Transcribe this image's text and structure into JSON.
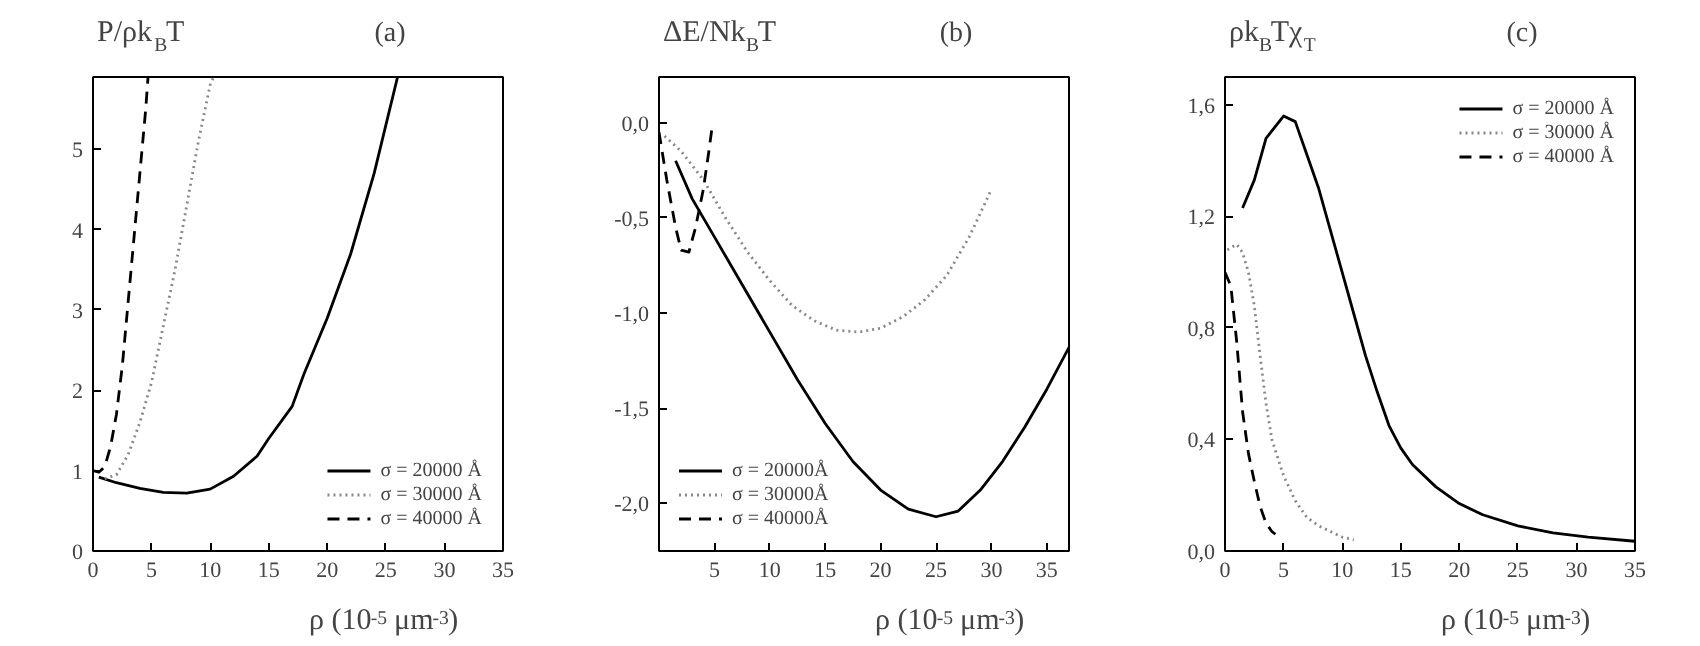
{
  "chart_data": [
    {
      "type": "line",
      "title": "(a)",
      "ylabel": "P/ρk$_{B}$T",
      "xlabel": "ρ (10$^{-5}$ μm$^{-3}$)",
      "xlim": [
        0,
        35
      ],
      "ylim": [
        0,
        5.9
      ],
      "xticks": [
        0,
        5,
        10,
        15,
        20,
        25,
        30,
        35
      ],
      "yticks": [
        0,
        1,
        2,
        3,
        4,
        5
      ],
      "grid": false,
      "legend": "bottom right",
      "series": [
        {
          "name": "σ = 20000 Å",
          "color": "#000000",
          "line_style": "solid",
          "x": [
            0.5,
            2,
            4,
            6,
            8,
            10,
            12,
            14,
            15,
            17,
            18,
            20,
            22,
            24,
            25,
            26
          ],
          "values": [
            0.92,
            0.85,
            0.78,
            0.73,
            0.72,
            0.77,
            0.93,
            1.18,
            1.4,
            1.8,
            2.2,
            2.9,
            3.7,
            4.7,
            5.3,
            5.9
          ]
        },
        {
          "name": "σ = 30000 Å",
          "color": "#888888",
          "line_style": "dotted",
          "x": [
            1,
            2,
            3,
            4,
            5,
            6,
            7,
            8,
            9,
            10,
            10.3
          ],
          "values": [
            0.9,
            0.95,
            1.2,
            1.6,
            2.1,
            2.8,
            3.5,
            4.3,
            5.1,
            5.8,
            5.9
          ]
        },
        {
          "name": "σ = 40000 Å",
          "color": "#000000",
          "line_style": "dashed",
          "x": [
            0,
            0.5,
            1,
            1.5,
            2,
            2.5,
            3,
            3.5,
            4,
            4.5,
            4.7
          ],
          "values": [
            1.0,
            0.98,
            1.05,
            1.3,
            1.7,
            2.3,
            3.1,
            3.9,
            4.7,
            5.5,
            5.9
          ]
        }
      ]
    },
    {
      "type": "line",
      "title": "(b)",
      "ylabel": "ΔE/Nk$_{B}$T",
      "xlabel": "ρ (10$^{-5}$ μm$^{-3}$)",
      "xlim": [
        0,
        37
      ],
      "ylim": [
        -2.25,
        0.24
      ],
      "xticks": [
        5,
        10,
        15,
        20,
        25,
        30,
        35
      ],
      "yticks": [
        {
          "value": 0,
          "label": "0,0"
        },
        {
          "value": -0.5,
          "label": "-0,5"
        },
        {
          "value": -1,
          "label": "-1,0"
        },
        {
          "value": -1.5,
          "label": "-1,5"
        },
        {
          "value": -2,
          "label": "-2,0"
        }
      ],
      "grid": false,
      "legend": "bottom left",
      "series": [
        {
          "name": "σ = 20000Å",
          "color": "#000000",
          "line_style": "solid",
          "x": [
            1.5,
            3,
            5,
            7.5,
            10,
            12.5,
            15,
            17.5,
            20,
            22.5,
            25,
            27,
            29,
            31,
            33,
            35,
            37
          ],
          "values": [
            -0.2,
            -0.4,
            -0.6,
            -0.85,
            -1.1,
            -1.35,
            -1.58,
            -1.78,
            -1.93,
            -2.03,
            -2.07,
            -2.04,
            -1.93,
            -1.78,
            -1.6,
            -1.4,
            -1.18
          ]
        },
        {
          "name": "σ = 30000Å",
          "color": "#888888",
          "line_style": "dotted",
          "x": [
            0.5,
            2,
            4,
            6,
            8,
            10,
            12,
            14,
            16,
            18,
            20,
            22,
            24,
            26,
            28,
            30
          ],
          "values": [
            -0.07,
            -0.15,
            -0.3,
            -0.5,
            -0.68,
            -0.83,
            -0.96,
            -1.04,
            -1.09,
            -1.1,
            -1.08,
            -1.02,
            -0.93,
            -0.8,
            -0.6,
            -0.35
          ]
        },
        {
          "name": "σ = 40000Å",
          "color": "#000000",
          "line_style": "dashed",
          "x": [
            0,
            0.7,
            1.5,
            2,
            2.7,
            3.3,
            4,
            4.5,
            4.8
          ],
          "values": [
            -0.05,
            -0.3,
            -0.55,
            -0.67,
            -0.68,
            -0.55,
            -0.35,
            -0.15,
            -0.02
          ]
        }
      ]
    },
    {
      "type": "line",
      "title": "(c)",
      "ylabel": "ρk$_{B}$Tχ$_{T}$",
      "xlabel": "ρ (10$^{-5}$ μm$^{-3}$)",
      "xlim": [
        0,
        35
      ],
      "ylim": [
        0,
        1.7
      ],
      "xticks": [
        0,
        5,
        10,
        15,
        20,
        25,
        30,
        35
      ],
      "yticks": [
        {
          "value": 0,
          "label": "0,0"
        },
        {
          "value": 0.4,
          "label": "0,4"
        },
        {
          "value": 0.8,
          "label": "0,8"
        },
        {
          "value": 1.2,
          "label": "1,2"
        },
        {
          "value": 1.6,
          "label": "1,6"
        }
      ],
      "grid": false,
      "legend": "top right",
      "series": [
        {
          "name": "σ = 20000 Å",
          "color": "#000000",
          "line_style": "solid",
          "x": [
            1.5,
            2.5,
            3.5,
            5,
            6,
            7,
            8,
            9,
            10,
            11,
            12,
            13,
            14,
            15,
            16,
            18,
            20,
            22,
            25,
            28,
            31,
            35
          ],
          "values": [
            1.23,
            1.33,
            1.48,
            1.56,
            1.54,
            1.42,
            1.3,
            1.15,
            1.0,
            0.85,
            0.7,
            0.57,
            0.45,
            0.37,
            0.31,
            0.23,
            0.17,
            0.13,
            0.09,
            0.065,
            0.05,
            0.035
          ]
        },
        {
          "name": "σ = 30000 Å",
          "color": "#888888",
          "line_style": "dotted",
          "x": [
            0.2,
            1,
            1.5,
            2,
            2.5,
            3,
            3.5,
            4,
            5,
            6,
            7,
            8,
            9,
            10,
            11
          ],
          "values": [
            1.08,
            1.1,
            1.07,
            1.0,
            0.88,
            0.7,
            0.53,
            0.4,
            0.27,
            0.18,
            0.12,
            0.09,
            0.07,
            0.05,
            0.04
          ]
        },
        {
          "name": "σ = 40000 Å",
          "color": "#000000",
          "line_style": "dashed",
          "x": [
            0,
            0.5,
            1,
            1.5,
            2,
            2.5,
            3,
            3.5,
            4,
            4.3
          ],
          "values": [
            1.0,
            0.95,
            0.75,
            0.5,
            0.35,
            0.25,
            0.16,
            0.1,
            0.07,
            0.06
          ]
        }
      ]
    }
  ]
}
